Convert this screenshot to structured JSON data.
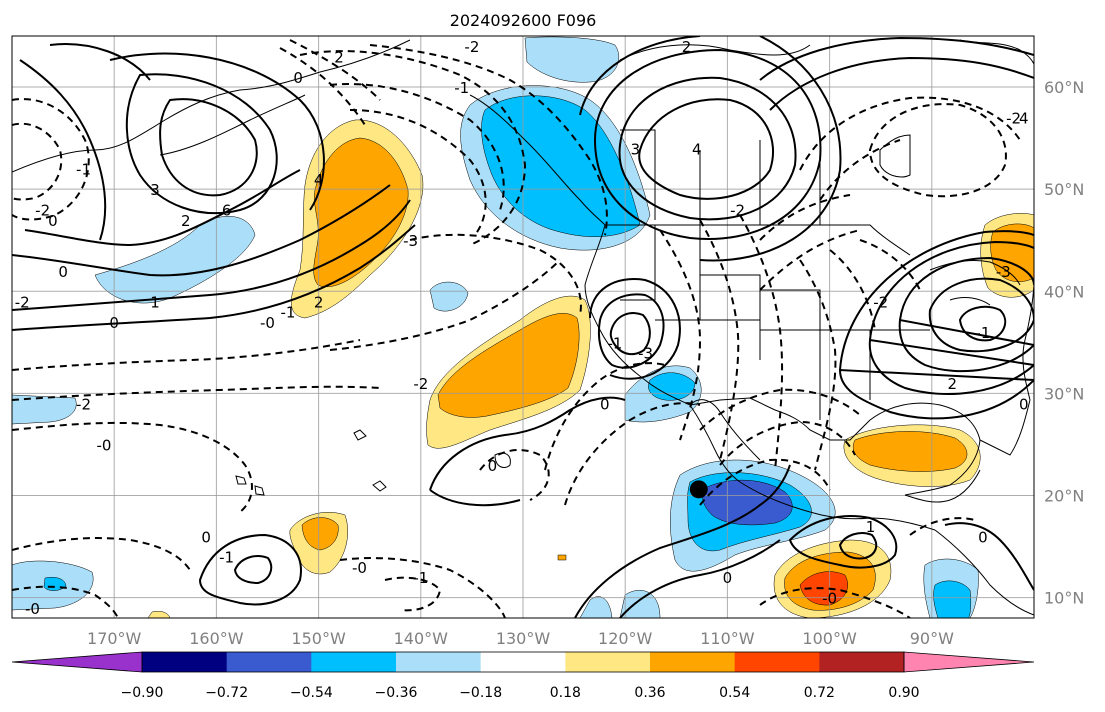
{
  "title": "2024092600 F096",
  "map": {
    "extent": {
      "lon_min": -180,
      "lon_max": -80,
      "lat_min": 8,
      "lat_max": 65
    },
    "lat_ticks": [
      "10°N",
      "20°N",
      "30°N",
      "40°N",
      "50°N",
      "60°N"
    ],
    "lon_ticks": [
      "170°W",
      "160°W",
      "150°W",
      "140°W",
      "130°W",
      "120°W",
      "110°W",
      "100°W",
      "90°W"
    ],
    "marker": {
      "label": "storm-center",
      "lon": -112.8,
      "lat": 20.6
    },
    "contour_labels": [
      {
        "text": "2",
        "lon": -148,
        "lat": 63
      },
      {
        "text": "0",
        "lon": -152,
        "lat": 61
      },
      {
        "text": "-1",
        "lon": -136,
        "lat": 60
      },
      {
        "text": "-2",
        "lon": -135,
        "lat": 64
      },
      {
        "text": "2",
        "lon": -114,
        "lat": 64
      },
      {
        "text": "3",
        "lon": -119,
        "lat": 54
      },
      {
        "text": "4",
        "lon": -113,
        "lat": 54
      },
      {
        "text": "-2",
        "lon": -109,
        "lat": 48
      },
      {
        "text": "4",
        "lon": -81,
        "lat": 57
      },
      {
        "text": "-1",
        "lon": -173,
        "lat": 52
      },
      {
        "text": "3",
        "lon": -166,
        "lat": 50
      },
      {
        "text": "2",
        "lon": -163,
        "lat": 47
      },
      {
        "text": "6",
        "lon": -159,
        "lat": 48
      },
      {
        "text": "-2",
        "lon": -177,
        "lat": 48
      },
      {
        "text": "0",
        "lon": -176,
        "lat": 47
      },
      {
        "text": "0",
        "lon": -175,
        "lat": 42
      },
      {
        "text": "4",
        "lon": -150,
        "lat": 51
      },
      {
        "text": "-3",
        "lon": -141,
        "lat": 45
      },
      {
        "text": "2",
        "lon": -150,
        "lat": 39
      },
      {
        "text": "-1",
        "lon": -153,
        "lat": 38
      },
      {
        "text": "-0",
        "lon": -155,
        "lat": 37
      },
      {
        "text": "1",
        "lon": -166,
        "lat": 39
      },
      {
        "text": "0",
        "lon": -170,
        "lat": 37
      },
      {
        "text": "-2",
        "lon": -179,
        "lat": 39
      },
      {
        "text": "-2",
        "lon": -140,
        "lat": 31
      },
      {
        "text": "-2",
        "lon": -173,
        "lat": 29
      },
      {
        "text": "-0",
        "lon": -171,
        "lat": 25
      },
      {
        "text": "0",
        "lon": -133,
        "lat": 23
      },
      {
        "text": "0",
        "lon": -122,
        "lat": 29
      },
      {
        "text": "-1",
        "lon": -121,
        "lat": 35
      },
      {
        "text": "-3",
        "lon": -118,
        "lat": 34
      },
      {
        "text": "0",
        "lon": -161,
        "lat": 16
      },
      {
        "text": "-1",
        "lon": -159,
        "lat": 14
      },
      {
        "text": "-0",
        "lon": -146,
        "lat": 13
      },
      {
        "text": "-1",
        "lon": -140,
        "lat": 12
      },
      {
        "text": "-0",
        "lon": -178,
        "lat": 9
      },
      {
        "text": "0",
        "lon": -110,
        "lat": 12
      },
      {
        "text": "-0",
        "lon": -100,
        "lat": 10
      },
      {
        "text": "1",
        "lon": -96,
        "lat": 17
      },
      {
        "text": "0",
        "lon": -85,
        "lat": 16
      },
      {
        "text": "-2",
        "lon": -95,
        "lat": 39
      },
      {
        "text": "2",
        "lon": -88,
        "lat": 31
      },
      {
        "text": "-1",
        "lon": -85,
        "lat": 36
      },
      {
        "text": "0",
        "lon": -81,
        "lat": 29
      },
      {
        "text": "-3",
        "lon": -83,
        "lat": 42
      },
      {
        "text": "-2",
        "lon": -82,
        "lat": 57
      }
    ]
  },
  "colorbar": {
    "labels": [
      "−0.90",
      "−0.72",
      "−0.54",
      "−0.36",
      "−0.18",
      "0.18",
      "0.36",
      "0.54",
      "0.72",
      "0.90"
    ],
    "colors": [
      "#9932cc",
      "#000080",
      "#3a5bd0",
      "#00bfff",
      "#abdff9",
      "#ffffff",
      "#ffe884",
      "#ffa500",
      "#ff4500",
      "#b22222",
      "#ff85b0"
    ]
  },
  "shading_colors": {
    "neg1": "#abdff9",
    "neg2": "#00bfff",
    "neg3": "#3a5bd0",
    "pos1": "#ffe884",
    "pos2": "#ffa500",
    "pos3": "#ff4500"
  }
}
